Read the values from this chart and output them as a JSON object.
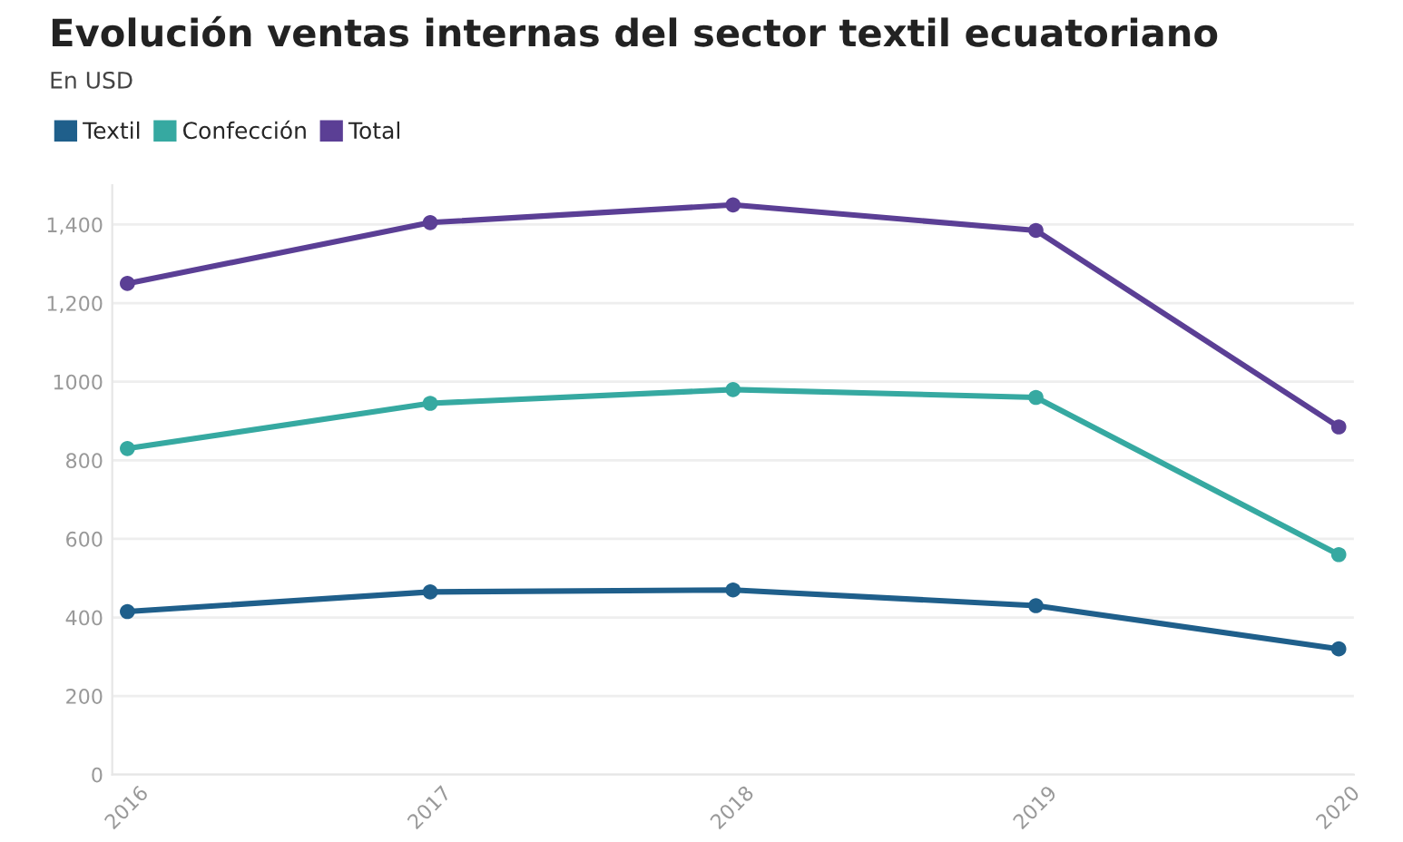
{
  "chart_data": {
    "type": "line",
    "title": "Evolución ventas internas del sector textil ecuatoriano",
    "subtitle": "En USD",
    "categories": [
      "2016",
      "2017",
      "2018",
      "2019",
      "2020"
    ],
    "series": [
      {
        "name": "Textil",
        "color": "#1f5f8b",
        "values": [
          415,
          465,
          470,
          430,
          320
        ]
      },
      {
        "name": "Confección",
        "color": "#36a9a1",
        "values": [
          830,
          945,
          980,
          960,
          560
        ]
      },
      {
        "name": "Total",
        "color": "#5b3f95",
        "values": [
          1250,
          1405,
          1450,
          1385,
          885
        ]
      }
    ],
    "ylim": [
      0,
      1500
    ],
    "yticks": [
      0,
      200,
      400,
      600,
      800,
      1000,
      {
        "value": 1200,
        "label": "1,200"
      },
      {
        "value": 1400,
        "label": "1,400"
      }
    ],
    "grid": "y",
    "legend": "top left",
    "marker": "circle",
    "line_style": "solid"
  }
}
